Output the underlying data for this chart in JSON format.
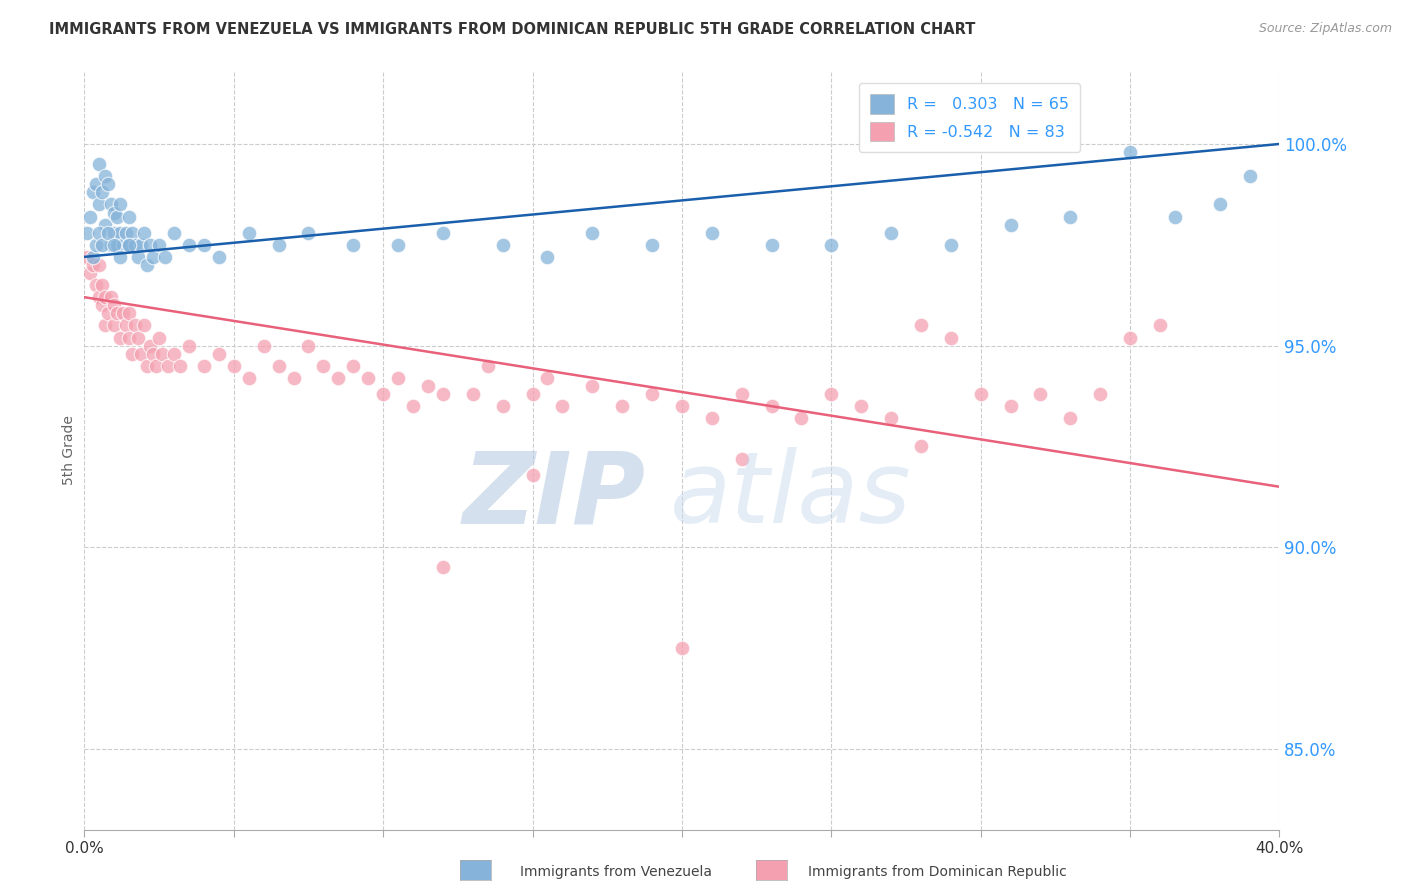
{
  "title": "IMMIGRANTS FROM VENEZUELA VS IMMIGRANTS FROM DOMINICAN REPUBLIC 5TH GRADE CORRELATION CHART",
  "source": "Source: ZipAtlas.com",
  "ylabel": "5th Grade",
  "yaxis_ticks": [
    85.0,
    90.0,
    95.0,
    100.0
  ],
  "xmin": 0.0,
  "xmax": 40.0,
  "ymin": 83.0,
  "ymax": 101.8,
  "blue_R": 0.303,
  "blue_N": 65,
  "pink_R": -0.542,
  "pink_N": 83,
  "blue_color": "#85B3D9",
  "pink_color": "#F4A0B0",
  "blue_line_color": "#1A5FAB",
  "pink_line_color": "#E8607A",
  "watermark_zip_color": "#B8CCE4",
  "watermark_atlas_color": "#C5D8ED",
  "legend_label_blue": "Immigrants from Venezuela",
  "legend_label_pink": "Immigrants from Dominican Republic",
  "blue_trend_x0": 0.0,
  "blue_trend_y0": 97.2,
  "blue_trend_x1": 40.0,
  "blue_trend_y1": 100.0,
  "pink_trend_x0": 0.0,
  "pink_trend_y0": 96.2,
  "pink_trend_x1": 40.0,
  "pink_trend_y1": 91.5,
  "blue_scatter_x": [
    0.1,
    0.2,
    0.3,
    0.4,
    0.5,
    0.5,
    0.6,
    0.7,
    0.7,
    0.8,
    0.9,
    0.9,
    1.0,
    1.0,
    1.1,
    1.1,
    1.2,
    1.2,
    1.3,
    1.4,
    1.5,
    1.5,
    1.6,
    1.7,
    1.8,
    1.9,
    2.0,
    2.1,
    2.2,
    2.3,
    2.5,
    2.7,
    3.0,
    3.5,
    4.0,
    4.5,
    5.5,
    6.5,
    7.5,
    9.0,
    10.5,
    12.0,
    14.0,
    15.5,
    17.0,
    19.0,
    21.0,
    23.0,
    25.0,
    27.0,
    29.0,
    31.0,
    33.0,
    35.0,
    36.5,
    38.0,
    39.0,
    0.3,
    0.4,
    0.5,
    0.6,
    0.8,
    1.0,
    1.2,
    1.5
  ],
  "blue_scatter_y": [
    97.8,
    98.2,
    98.8,
    99.0,
    98.5,
    99.5,
    98.8,
    99.2,
    98.0,
    99.0,
    97.5,
    98.5,
    97.8,
    98.3,
    97.5,
    98.2,
    97.8,
    98.5,
    97.5,
    97.8,
    97.5,
    98.2,
    97.8,
    97.5,
    97.2,
    97.5,
    97.8,
    97.0,
    97.5,
    97.2,
    97.5,
    97.2,
    97.8,
    97.5,
    97.5,
    97.2,
    97.8,
    97.5,
    97.8,
    97.5,
    97.5,
    97.8,
    97.5,
    97.2,
    97.8,
    97.5,
    97.8,
    97.5,
    97.5,
    97.8,
    97.5,
    98.0,
    98.2,
    99.8,
    98.2,
    98.5,
    99.2,
    97.2,
    97.5,
    97.8,
    97.5,
    97.8,
    97.5,
    97.2,
    97.5
  ],
  "pink_scatter_x": [
    0.1,
    0.2,
    0.3,
    0.4,
    0.5,
    0.5,
    0.6,
    0.6,
    0.7,
    0.7,
    0.8,
    0.9,
    1.0,
    1.0,
    1.1,
    1.2,
    1.3,
    1.4,
    1.5,
    1.5,
    1.6,
    1.7,
    1.8,
    1.9,
    2.0,
    2.1,
    2.2,
    2.3,
    2.4,
    2.5,
    2.6,
    2.8,
    3.0,
    3.2,
    3.5,
    4.0,
    4.5,
    5.0,
    5.5,
    6.0,
    6.5,
    7.0,
    7.5,
    8.0,
    8.5,
    9.0,
    9.5,
    10.0,
    10.5,
    11.0,
    11.5,
    12.0,
    13.0,
    13.5,
    14.0,
    15.0,
    15.5,
    16.0,
    17.0,
    18.0,
    19.0,
    20.0,
    21.0,
    22.0,
    23.0,
    24.0,
    25.0,
    26.0,
    27.0,
    28.0,
    29.0,
    30.0,
    31.0,
    32.0,
    33.0,
    34.0,
    35.0,
    36.0,
    12.0,
    20.0,
    15.0,
    22.0,
    28.0
  ],
  "pink_scatter_y": [
    97.2,
    96.8,
    97.0,
    96.5,
    96.2,
    97.0,
    96.0,
    96.5,
    95.5,
    96.2,
    95.8,
    96.2,
    95.5,
    96.0,
    95.8,
    95.2,
    95.8,
    95.5,
    95.2,
    95.8,
    94.8,
    95.5,
    95.2,
    94.8,
    95.5,
    94.5,
    95.0,
    94.8,
    94.5,
    95.2,
    94.8,
    94.5,
    94.8,
    94.5,
    95.0,
    94.5,
    94.8,
    94.5,
    94.2,
    95.0,
    94.5,
    94.2,
    95.0,
    94.5,
    94.2,
    94.5,
    94.2,
    93.8,
    94.2,
    93.5,
    94.0,
    93.8,
    93.8,
    94.5,
    93.5,
    93.8,
    94.2,
    93.5,
    94.0,
    93.5,
    93.8,
    93.5,
    93.2,
    93.8,
    93.5,
    93.2,
    93.8,
    93.5,
    93.2,
    95.5,
    95.2,
    93.8,
    93.5,
    93.8,
    93.2,
    93.8,
    95.2,
    95.5,
    89.5,
    87.5,
    91.8,
    92.2,
    92.5
  ]
}
